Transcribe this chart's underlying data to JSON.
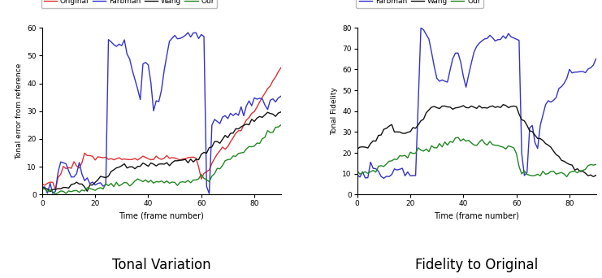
{
  "plot1": {
    "title": "Tonal Variation",
    "ylabel": "Tonal error from reference",
    "xlabel": "Time (frame number)",
    "ylim": [
      0,
      60
    ],
    "xlim": [
      0,
      90
    ],
    "yticks": [
      0,
      10,
      20,
      30,
      40,
      50,
      60
    ],
    "xticks": [
      0,
      20,
      40,
      60,
      80
    ],
    "legend": [
      "Original",
      "Farbman",
      "Wang",
      "Our"
    ],
    "legend_colors": [
      "#e03030",
      "#3333cc",
      "#111111",
      "#228822"
    ]
  },
  "plot2": {
    "title": "Fidelity to Original",
    "ylabel": "Tonal Fidelity",
    "xlabel": "Time (frame number)",
    "ylim": [
      0,
      80
    ],
    "xlim": [
      0,
      90
    ],
    "yticks": [
      0,
      10,
      20,
      30,
      40,
      50,
      60,
      70,
      80
    ],
    "xticks": [
      0,
      20,
      40,
      60,
      80
    ],
    "legend": [
      "Farbman",
      "Wang",
      "Our"
    ],
    "legend_colors": [
      "#3333cc",
      "#111111",
      "#228822"
    ]
  },
  "caption1": "Tonal Variation",
  "caption2": "Fidelity to Original",
  "background_color": "#ffffff",
  "linewidth": 1.0
}
